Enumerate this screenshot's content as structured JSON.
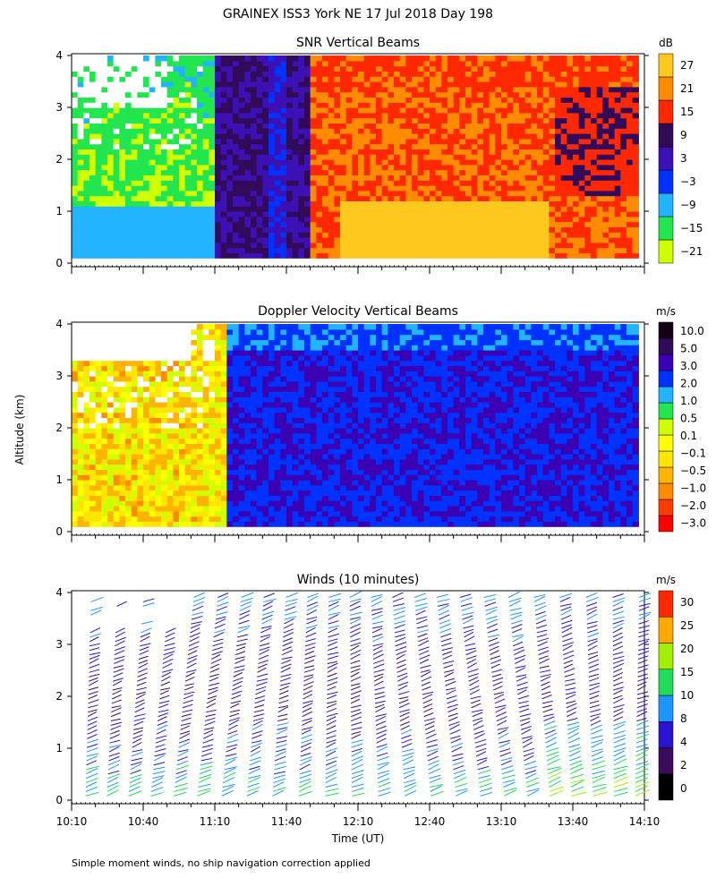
{
  "figure": {
    "title": "GRAINEX ISS3 York NE  17 Jul 2018 Day 198",
    "xlabel": "Time (UT)",
    "ylabel": "Altitude (km)",
    "footnote": "Simple moment winds, no ship navigation correction applied"
  },
  "colors": {
    "snr": [
      "#d0ff00",
      "#22e650",
      "#22b4ff",
      "#0032ff",
      "#3c10b4",
      "#320a5a",
      "#ff2800",
      "#ff8c00",
      "#ffc81e"
    ],
    "vel": [
      "#ff0000",
      "#ff3c00",
      "#ff8c00",
      "#ffb400",
      "#ffe600",
      "#ffff00",
      "#d0ff00",
      "#22e650",
      "#22b4ff",
      "#0032ff",
      "#3c00b4",
      "#320a5a",
      "#140014"
    ],
    "wind": [
      "#000000",
      "#3c0a5a",
      "#2814d2",
      "#1e96ff",
      "#22dc5a",
      "#a0f000",
      "#ffa800",
      "#ff2800"
    ]
  },
  "chart_data": [
    {
      "type": "heatmap",
      "title": "SNR Vertical Beams",
      "units": "dB",
      "ylim": [
        0,
        4
      ],
      "xlim": [
        "10:10",
        "14:10"
      ],
      "y_ticks": [
        "0",
        "1",
        "2",
        "3",
        "4"
      ],
      "colorbar_labels": [
        "27",
        "21",
        "15",
        "9",
        "3",
        "−3",
        "−9",
        "−15",
        "−21"
      ],
      "regions": [
        {
          "time": [
            "10:10",
            "11:10"
          ],
          "values_dB": [
            -21,
            -3
          ],
          "note_level": "low"
        },
        {
          "time": [
            "11:10",
            "11:40"
          ],
          "values_dB": [
            3,
            9
          ]
        },
        {
          "time": [
            "11:50",
            "14:10"
          ],
          "values_dB": [
            15,
            27
          ]
        }
      ]
    },
    {
      "type": "heatmap",
      "title": "Doppler Velocity Vertical Beams",
      "units": "m/s",
      "ylim": [
        0,
        4
      ],
      "xlim": [
        "10:10",
        "14:10"
      ],
      "y_ticks": [
        "0",
        "1",
        "2",
        "3",
        "4"
      ],
      "colorbar_labels": [
        "10.0",
        "5.0",
        "3.0",
        "2.0",
        "1.0",
        "0.5",
        "0.1",
        "−0.1",
        "−0.5",
        "−1.0",
        "−2.0",
        "−3.0"
      ],
      "regions": [
        {
          "time": [
            "10:10",
            "11:10"
          ],
          "values_ms": [
            -1.0,
            0.5
          ]
        },
        {
          "time": [
            "11:10",
            "14:10"
          ],
          "values_ms": [
            3.0,
            5.0
          ]
        }
      ]
    },
    {
      "type": "scatter",
      "title": "Winds (10 minutes)",
      "units": "m/s",
      "ylim": [
        0,
        4
      ],
      "x_ticks": [
        "10:10",
        "10:40",
        "11:10",
        "11:40",
        "12:10",
        "12:40",
        "13:10",
        "13:40",
        "14:10"
      ],
      "y_ticks": [
        "0",
        "1",
        "2",
        "3",
        "4"
      ],
      "colorbar_labels": [
        "30",
        "25",
        "20",
        "15",
        "10",
        "8",
        "4",
        "2",
        "0"
      ],
      "columns_minutes": [
        10,
        20,
        30,
        40,
        50,
        60,
        70,
        80,
        90,
        100,
        110,
        120,
        130,
        140,
        150,
        160,
        170,
        180,
        190,
        200,
        210,
        220,
        230,
        240
      ],
      "profile_speed_ms": [
        {
          "alt": 0.2,
          "speed": 9
        },
        {
          "alt": 1.0,
          "speed": 5
        },
        {
          "alt": 2.0,
          "speed": 3
        },
        {
          "alt": 3.0,
          "speed": 4
        },
        {
          "alt": 3.9,
          "speed": 7
        }
      ]
    }
  ]
}
